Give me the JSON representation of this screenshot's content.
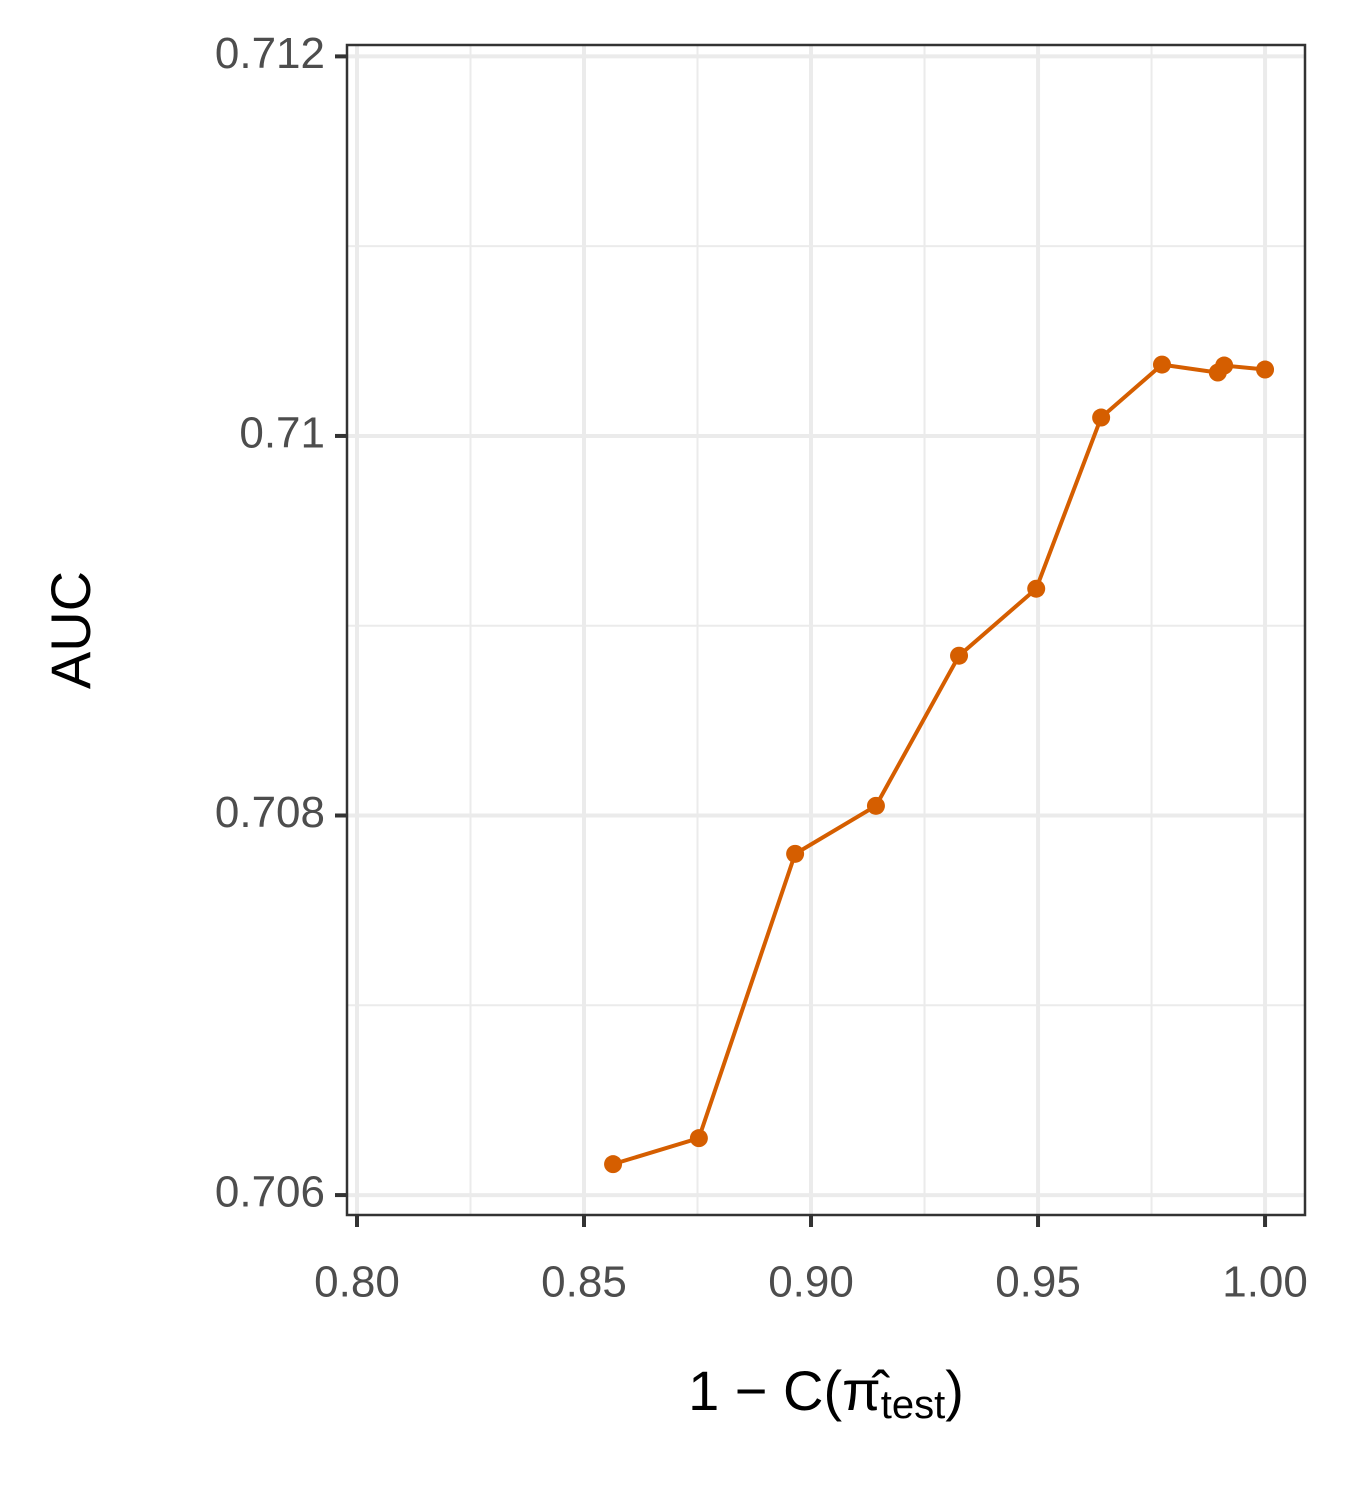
{
  "chart_data": {
    "type": "line",
    "ylabel": "AUC",
    "xlabel": {
      "prefix": "1 − C(",
      "symbol": "π̂",
      "subscript": "test",
      "suffix": ")"
    },
    "x": [
      0.8564,
      0.8753,
      0.8965,
      0.9143,
      0.9326,
      0.9496,
      0.9639,
      0.9773,
      0.9896,
      0.991,
      1.0
    ],
    "series": [
      {
        "color": "#d55e00",
        "values": [
          0.706163,
          0.7063,
          0.707798,
          0.708051,
          0.708842,
          0.709195,
          0.710097,
          0.710376,
          0.710334,
          0.710371,
          0.71035
        ]
      }
    ],
    "xlim": [
      0.7978,
      1.0088
    ],
    "ylim": [
      0.705895,
      0.71206
    ],
    "xticks": [
      {
        "value": 0.8,
        "label": "0.80"
      },
      {
        "value": 0.85,
        "label": "0.85"
      },
      {
        "value": 0.9,
        "label": "0.90"
      },
      {
        "value": 0.95,
        "label": "0.95"
      },
      {
        "value": 1.0,
        "label": "1.00"
      }
    ],
    "yticks": [
      0.706,
      0.708,
      0.71,
      {
        "value": 0.712,
        "label": "0.712"
      }
    ],
    "xminor": [
      0.825,
      0.875,
      0.925,
      0.975
    ],
    "yminor": [
      0.707,
      0.709,
      0.711
    ],
    "grid": true
  }
}
